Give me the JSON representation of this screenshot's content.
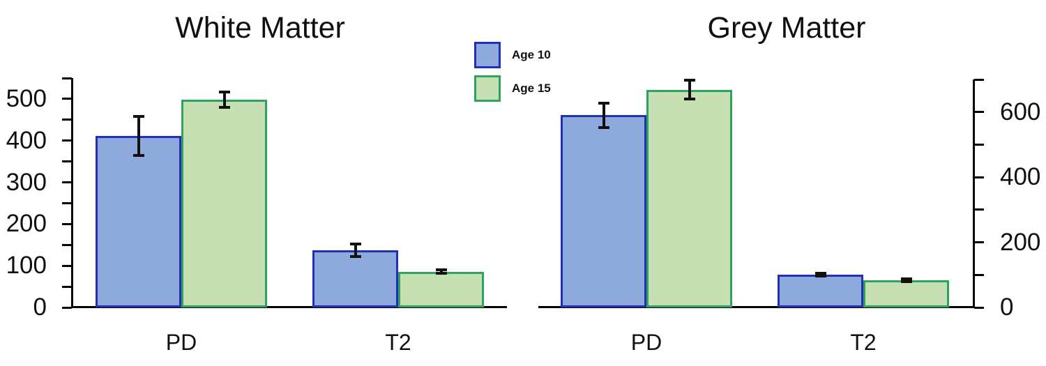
{
  "figure": {
    "legend": {
      "position": "top-center-between-panels",
      "items": [
        {
          "label": "Age 10",
          "series": "age10"
        },
        {
          "label": "Age 15",
          "series": "age15"
        }
      ]
    }
  },
  "colors": {
    "age10_fill": "#8EA9DB",
    "age10_border": "#2230B5",
    "age15_fill": "#C6E0B4",
    "age15_border": "#2EA360",
    "axis": "#000000",
    "error": "#111111"
  },
  "chart_data": [
    {
      "type": "bar",
      "title": "White Matter",
      "categories": [
        "PD",
        "T2"
      ],
      "series": [
        {
          "name": "Age 10",
          "values": [
            411,
            137
          ],
          "errors": [
            47,
            15
          ]
        },
        {
          "name": "Age 15",
          "values": [
            498,
            86
          ],
          "errors": [
            19,
            4
          ]
        }
      ],
      "xlabel": "",
      "ylabel": "",
      "ylim": [
        0,
        550
      ],
      "yticks_minor_step": 50,
      "ytick_labels": [
        0,
        100,
        200,
        300,
        400,
        500
      ],
      "axis_side": "left",
      "grid": false,
      "error_bars": true
    },
    {
      "type": "bar",
      "title": "Grey Matter",
      "categories": [
        "PD",
        "T2"
      ],
      "series": [
        {
          "name": "Age 10",
          "values": [
            590,
            101
          ],
          "errors": [
            37,
            4
          ]
        },
        {
          "name": "Age 15",
          "values": [
            668,
            83
          ],
          "errors": [
            29,
            4
          ]
        }
      ],
      "xlabel": "",
      "ylabel": "",
      "ylim": [
        0,
        700
      ],
      "yticks_minor_step": 100,
      "ytick_labels": [
        0,
        200,
        400,
        600
      ],
      "axis_side": "right",
      "grid": false,
      "error_bars": true
    }
  ]
}
